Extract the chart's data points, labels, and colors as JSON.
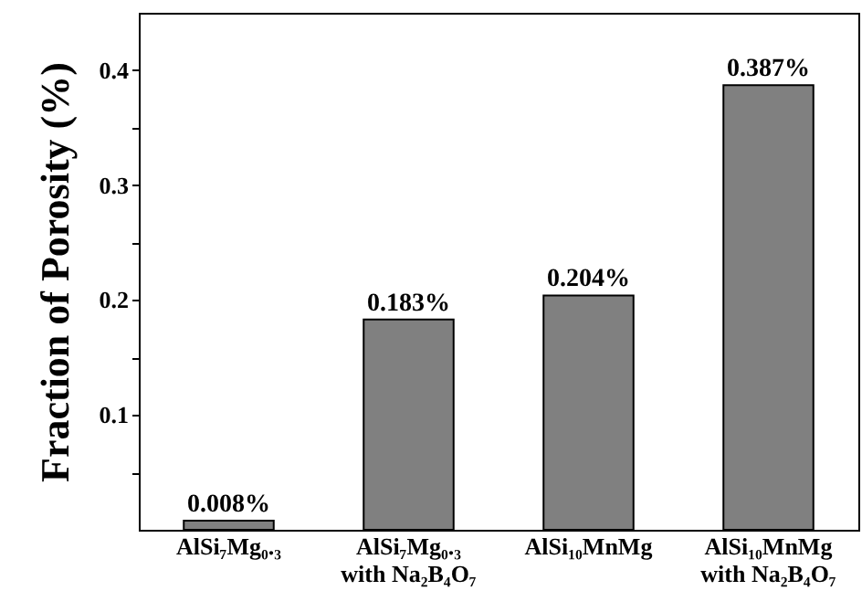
{
  "chart_data": {
    "type": "bar",
    "ylabel": "Fraction of Porosity (%)",
    "categories": [
      "AlSi₇Mg₀.₃",
      "AlSi₇Mg₀.₃\nwith Na₂B₄O₇",
      "AlSi₁₀MnMg",
      "AlSi₁₀MnMg\nwith Na₂B₄O₇"
    ],
    "values": [
      0.008,
      0.183,
      0.204,
      0.387
    ],
    "value_labels": [
      "0.008%",
      "0.183%",
      "0.204%",
      "0.387%"
    ],
    "color": "#808080",
    "ylim": [
      0,
      0.45
    ],
    "yticks": [
      {
        "value": 0.05,
        "label": null
      },
      0.1,
      {
        "value": 0.15,
        "label": null
      },
      0.2,
      {
        "value": 0.25,
        "label": null
      },
      0.3,
      {
        "value": 0.35,
        "label": null
      },
      0.4
    ],
    "grid": false
  }
}
